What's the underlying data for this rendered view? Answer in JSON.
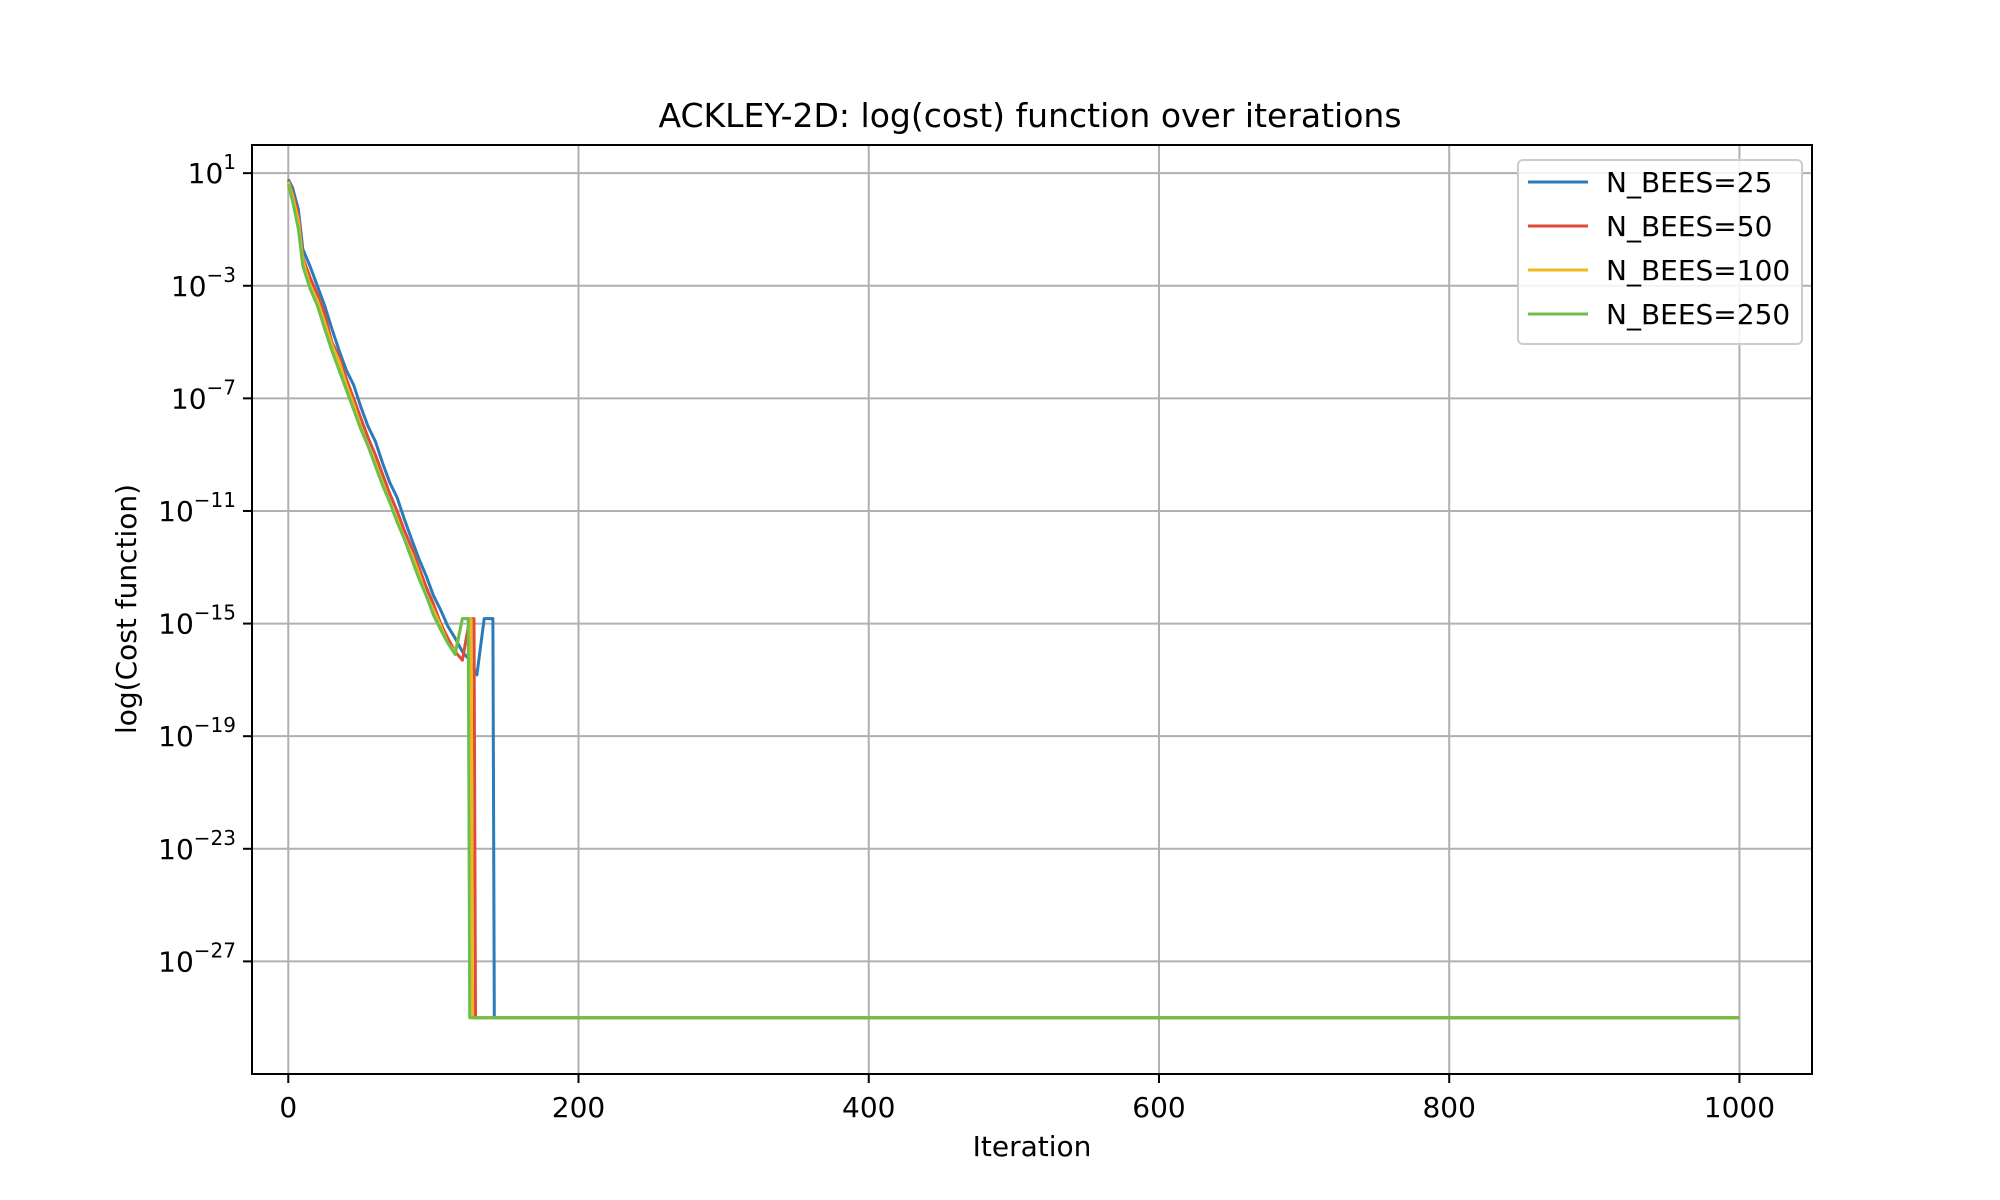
{
  "chart_data": {
    "type": "line",
    "title": "ACKLEY-2D: log(cost) function over iterations",
    "xlabel": "Iteration",
    "ylabel": "log(Cost function)",
    "xlim": [
      -25,
      1050
    ],
    "yscale": "log",
    "ylim": [
      1e-31,
      100.0
    ],
    "grid": true,
    "legend_position": "top-right",
    "x_ticks": [
      0,
      200,
      400,
      600,
      800,
      1000
    ],
    "y_ticks": [
      {
        "value": 10.0,
        "base": "10",
        "exp": "1"
      },
      {
        "value": 0.001,
        "base": "10",
        "exp": "−3"
      },
      {
        "value": 1e-07,
        "base": "10",
        "exp": "−7"
      },
      {
        "value": 1e-11,
        "base": "10",
        "exp": "−11"
      },
      {
        "value": 1e-15,
        "base": "10",
        "exp": "−15"
      },
      {
        "value": 1e-19,
        "base": "10",
        "exp": "−19"
      },
      {
        "value": 1e-23,
        "base": "10",
        "exp": "−23"
      },
      {
        "value": 1e-27,
        "base": "10",
        "exp": "−27"
      }
    ],
    "series": [
      {
        "name": "N_BEES=25",
        "color": "#2b7bba",
        "points": [
          [
            0,
            6
          ],
          [
            3,
            3
          ],
          [
            7,
            0.5
          ],
          [
            10,
            0.02
          ],
          [
            15,
            0.005
          ],
          [
            20,
            0.001
          ],
          [
            25,
            0.0002
          ],
          [
            30,
            3e-05
          ],
          [
            35,
            5e-06
          ],
          [
            40,
            1e-06
          ],
          [
            45,
            3e-07
          ],
          [
            50,
            5e-08
          ],
          [
            55,
            1e-08
          ],
          [
            60,
            3e-09
          ],
          [
            65,
            5e-10
          ],
          [
            70,
            1e-10
          ],
          [
            75,
            3e-11
          ],
          [
            80,
            5e-12
          ],
          [
            85,
            1e-12
          ],
          [
            90,
            2e-13
          ],
          [
            95,
            5e-14
          ],
          [
            100,
            1e-14
          ],
          [
            105,
            3e-15
          ],
          [
            110,
            8e-16
          ],
          [
            115,
            3e-16
          ],
          [
            120,
            1e-16
          ],
          [
            125,
            5e-17
          ],
          [
            130,
            1.5e-17
          ],
          [
            135,
            1.5e-15
          ],
          [
            141,
            1.5e-15
          ],
          [
            142,
            1e-29
          ],
          [
            1000,
            1e-29
          ]
        ]
      },
      {
        "name": "N_BEES=50",
        "color": "#e04a3a",
        "points": [
          [
            0,
            5
          ],
          [
            3,
            2
          ],
          [
            7,
            0.3
          ],
          [
            10,
            0.01
          ],
          [
            15,
            0.002
          ],
          [
            20,
            0.0005
          ],
          [
            25,
            0.0001
          ],
          [
            30,
            1e-05
          ],
          [
            35,
            3e-06
          ],
          [
            40,
            5e-07
          ],
          [
            45,
            1e-07
          ],
          [
            50,
            2e-08
          ],
          [
            55,
            4e-09
          ],
          [
            60,
            1e-09
          ],
          [
            65,
            2e-10
          ],
          [
            70,
            4e-11
          ],
          [
            75,
            1e-11
          ],
          [
            80,
            2e-12
          ],
          [
            85,
            5e-13
          ],
          [
            90,
            1e-13
          ],
          [
            95,
            2e-14
          ],
          [
            100,
            5e-15
          ],
          [
            105,
            1e-15
          ],
          [
            110,
            3e-16
          ],
          [
            115,
            1e-16
          ],
          [
            120,
            5e-17
          ],
          [
            125,
            1.5e-15
          ],
          [
            128,
            1.5e-15
          ],
          [
            129,
            1e-29
          ],
          [
            1000,
            1e-29
          ]
        ]
      },
      {
        "name": "N_BEES=100",
        "color": "#f0b81e",
        "points": [
          [
            0,
            5
          ],
          [
            3,
            1.5
          ],
          [
            7,
            0.2
          ],
          [
            10,
            0.008
          ],
          [
            15,
            0.001
          ],
          [
            20,
            0.0003
          ],
          [
            25,
            5e-05
          ],
          [
            30,
            8e-06
          ],
          [
            35,
            2e-06
          ],
          [
            40,
            3e-07
          ],
          [
            45,
            6e-08
          ],
          [
            50,
            1e-08
          ],
          [
            55,
            2e-09
          ],
          [
            60,
            5e-10
          ],
          [
            65,
            1e-10
          ],
          [
            70,
            2e-11
          ],
          [
            75,
            5e-12
          ],
          [
            80,
            1e-12
          ],
          [
            85,
            3e-13
          ],
          [
            90,
            6e-14
          ],
          [
            95,
            1e-14
          ],
          [
            100,
            3e-15
          ],
          [
            105,
            8e-16
          ],
          [
            110,
            2e-16
          ],
          [
            115,
            1e-16
          ],
          [
            120,
            1.5e-15
          ],
          [
            126,
            1.5e-15
          ],
          [
            127,
            1e-29
          ],
          [
            1000,
            1e-29
          ]
        ]
      },
      {
        "name": "N_BEES=250",
        "color": "#6cc04a",
        "points": [
          [
            0,
            4
          ],
          [
            3,
            1
          ],
          [
            7,
            0.1
          ],
          [
            10,
            0.005
          ],
          [
            15,
            0.0008
          ],
          [
            20,
            0.0002
          ],
          [
            25,
            3e-05
          ],
          [
            30,
            5e-06
          ],
          [
            35,
            1e-06
          ],
          [
            40,
            2e-07
          ],
          [
            45,
            4e-08
          ],
          [
            50,
            8e-09
          ],
          [
            55,
            2e-09
          ],
          [
            60,
            4e-10
          ],
          [
            65,
            8e-11
          ],
          [
            70,
            2e-11
          ],
          [
            75,
            4e-12
          ],
          [
            80,
            1e-12
          ],
          [
            85,
            2e-13
          ],
          [
            90,
            4e-14
          ],
          [
            95,
            1e-14
          ],
          [
            100,
            2e-15
          ],
          [
            105,
            6e-16
          ],
          [
            110,
            2e-16
          ],
          [
            115,
            8e-17
          ],
          [
            120,
            1.5e-15
          ],
          [
            124,
            1.5e-15
          ],
          [
            125,
            1e-29
          ],
          [
            1000,
            1e-29
          ]
        ]
      }
    ]
  }
}
